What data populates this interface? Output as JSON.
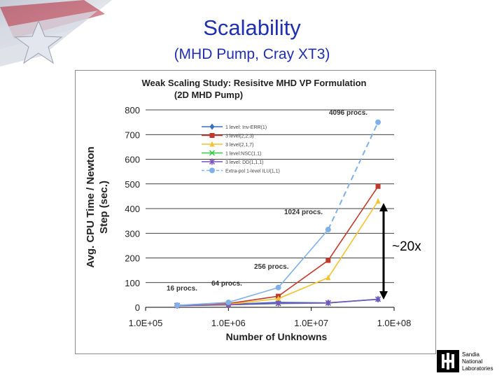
{
  "slide": {
    "title": "Scalability",
    "subtitle": "(MHD Pump, Cray XT3)",
    "annotation": "~20x",
    "logo_text": [
      "Sandia",
      "National",
      "Laboratories"
    ]
  },
  "chart_data": {
    "type": "line",
    "title_lines": [
      "Weak Scaling Study: Resisitve MHD VP Formulation",
      "(2D MHD Pump)"
    ],
    "xlabel": "Number of Unknowns",
    "ylabel_lines": [
      "Avg. CPU Time / Newton",
      "Step (sec.)"
    ],
    "xscale": "log",
    "xlim": [
      100000,
      100000000
    ],
    "ylim": [
      0,
      800
    ],
    "x_ticks": [
      "1.0E+05",
      "1.0E+06",
      "1.0E+07",
      "1.0E+08"
    ],
    "y_ticks": [
      0,
      100,
      200,
      300,
      400,
      500,
      600,
      700,
      800
    ],
    "grid": "horizontal",
    "legend_position": "upper-left",
    "x": [
      240000,
      1000000,
      4000000,
      16000000,
      64000000
    ],
    "series": [
      {
        "name": "1 level: Inv-ERR(1)",
        "color": "#3a6fc4",
        "marker": "diamond",
        "values": [
          8,
          12,
          20,
          18,
          32
        ]
      },
      {
        "name": "3 level(2,2,3)",
        "color": "#c0392b",
        "marker": "square",
        "values": [
          8,
          15,
          45,
          190,
          490
        ]
      },
      {
        "name": "3 level(2,1,7)",
        "color": "#f2c230",
        "marker": "triangle",
        "values": [
          8,
          12,
          35,
          120,
          430
        ]
      },
      {
        "name": "1 level:NSC(1,1)",
        "color": "#2ecc40",
        "marker": "x",
        "values": [
          7,
          10,
          15,
          17,
          33
        ]
      },
      {
        "name": "3 level: DD(1,1,1)",
        "color": "#7b4fc4",
        "marker": "star",
        "values": [
          7,
          10,
          16,
          18,
          33
        ]
      },
      {
        "name": "Extra-pol 1-level ILU(1,1)",
        "color": "#7fb0e8",
        "marker": "circle",
        "dashed": true,
        "values": [
          8,
          20,
          80,
          315,
          750
        ]
      }
    ],
    "annotations": [
      "16 procs.",
      "64 procs.",
      "256 procs.",
      "1024 procs.",
      "4096 procs."
    ]
  }
}
